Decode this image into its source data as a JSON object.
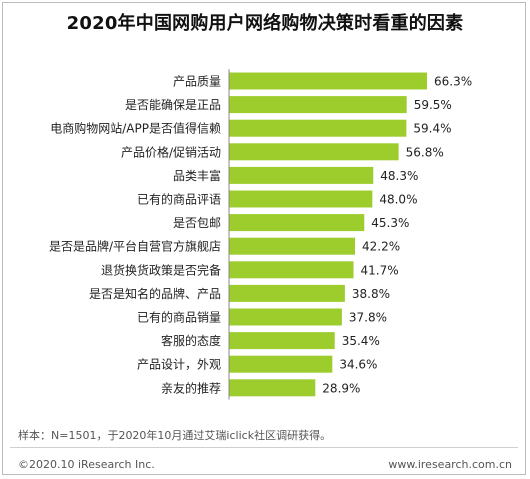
{
  "header": {
    "title": "2020年中国网购用户网络购物决策时看重的因素"
  },
  "chart_data": {
    "type": "bar",
    "orientation": "horizontal",
    "categories": [
      "产品质量",
      "是否能确保是正品",
      "电商购物网站/APP是否值得信赖",
      "产品价格/促销活动",
      "品类丰富",
      "已有的商品评语",
      "是否包邮",
      "是否是品牌/平台自营官方旗舰店",
      "退货换货政策是否完备",
      "是否是知名的品牌、产品",
      "已有的商品销量",
      "客服的态度",
      "产品设计，外观",
      "亲友的推荐"
    ],
    "values": [
      66.3,
      59.5,
      59.4,
      56.8,
      48.3,
      48.0,
      45.3,
      42.2,
      41.7,
      38.8,
      37.8,
      35.4,
      34.6,
      28.9
    ],
    "value_labels": [
      "66.3%",
      "59.5%",
      "59.4%",
      "56.8%",
      "48.3%",
      "48.0%",
      "45.3%",
      "42.2%",
      "41.7%",
      "38.8%",
      "37.8%",
      "35.4%",
      "34.6%",
      "28.9%"
    ],
    "xlim": [
      0,
      80
    ],
    "unit": "%",
    "bar_color": "#9dcd2d",
    "grid": false,
    "legend": "none"
  },
  "footer": {
    "note": "样本：N=1501，于2020年10月通过艾瑞iclick社区调研获得。",
    "copyright": "©2020.10 iResearch Inc.",
    "website": "www.iresearch.com.cn"
  }
}
